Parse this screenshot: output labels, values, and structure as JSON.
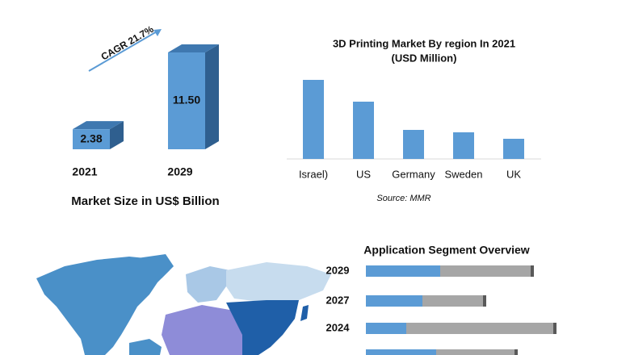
{
  "chart_data": [
    {
      "type": "bar3d",
      "categories": [
        "2021",
        "2029"
      ],
      "values": [
        2.38,
        11.5
      ],
      "value_labels": [
        "2.38",
        "11.50"
      ],
      "annotation": "CAGR 21.7%",
      "x_label": "Market Size in US$ Billion",
      "color": "#5b9bd5"
    },
    {
      "type": "bar",
      "title": "3D Printing Market By region In 2021",
      "subtitle": "(USD Million)",
      "categories": [
        "Israel)",
        "US",
        "Germany",
        "Sweden",
        "UK"
      ],
      "values": [
        98,
        71,
        36,
        33,
        25
      ],
      "color": "#5b9bd5",
      "source": "Source: MMR"
    },
    {
      "type": "hbar_stacked",
      "title": "Application  Segment Overview",
      "categories": [
        "2029",
        "2027",
        "2024",
        null
      ],
      "series": [
        {
          "color": "#5b9bd5",
          "values": [
            92,
            70,
            50,
            87
          ]
        },
        {
          "color": "#a6a6a6",
          "values": [
            112,
            75,
            182,
            97
          ]
        }
      ]
    }
  ]
}
